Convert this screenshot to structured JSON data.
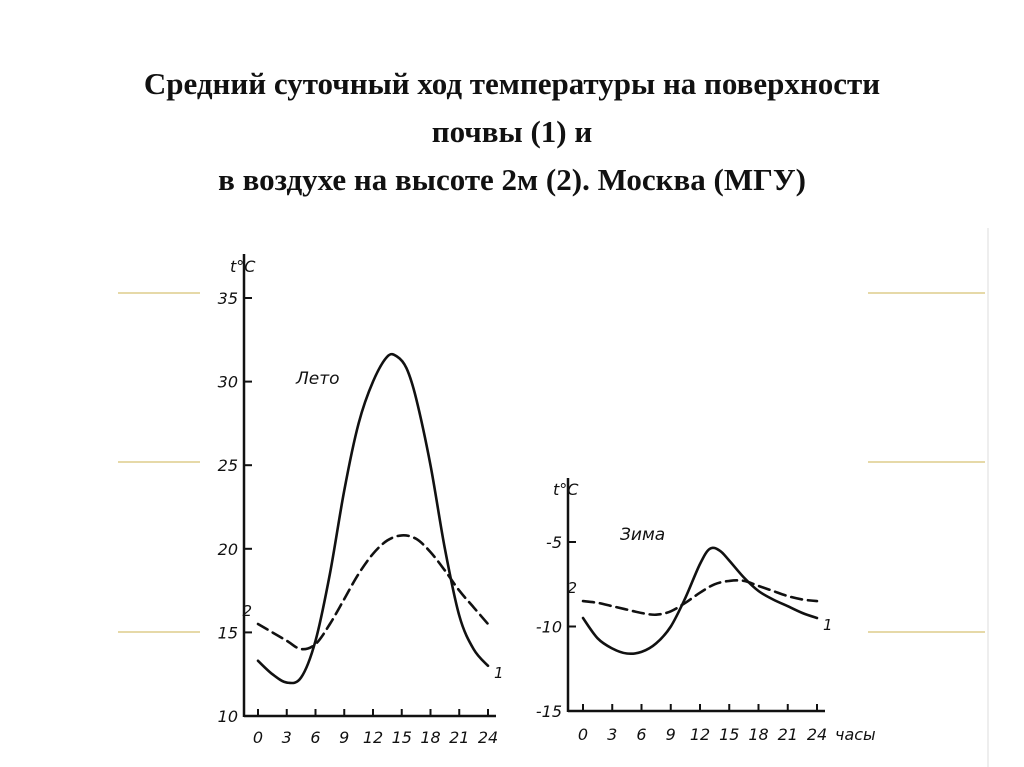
{
  "title": {
    "line1": "Средний суточный ход температуры на поверхности",
    "line2": "почвы (1)  и",
    "line3": "в воздухе на высоте 2м (2).  Москва (МГУ)"
  },
  "chart_data": [
    {
      "type": "line",
      "panel_label": "Лето",
      "ylabel": "t°C",
      "xlabel": "",
      "x_ticks": [
        "0",
        "3",
        "6",
        "9",
        "12",
        "15",
        "18",
        "21",
        "24"
      ],
      "y_ticks": [
        "10",
        "15",
        "20",
        "25",
        "30",
        "35"
      ],
      "xlim": [
        0,
        24
      ],
      "ylim": [
        10,
        35
      ],
      "grid": false,
      "series": [
        {
          "name": "1",
          "style": "solid",
          "x": [
            0,
            1.5,
            3,
            4.5,
            6,
            7.5,
            9,
            10.5,
            12,
            13.5,
            14.5,
            15.5,
            16.5,
            18,
            19.5,
            21,
            22.5,
            24
          ],
          "values": [
            13.3,
            12.5,
            12.0,
            12.3,
            14.5,
            18.5,
            23.5,
            27.5,
            30.0,
            31.5,
            31.5,
            30.8,
            29.0,
            25.0,
            20.0,
            16.0,
            14.0,
            13.0
          ]
        },
        {
          "name": "2",
          "style": "dashed",
          "x": [
            0,
            1.5,
            3,
            4.5,
            6,
            7.5,
            9,
            10.5,
            12,
            13.5,
            15,
            16.5,
            18,
            19.5,
            21,
            22.5,
            24
          ],
          "values": [
            15.5,
            15.0,
            14.5,
            14.0,
            14.3,
            15.5,
            17.0,
            18.5,
            19.7,
            20.5,
            20.8,
            20.6,
            19.8,
            18.7,
            17.5,
            16.5,
            15.5
          ]
        }
      ]
    },
    {
      "type": "line",
      "panel_label": "Зима",
      "ylabel": "t°C",
      "xlabel": "часы",
      "x_ticks": [
        "0",
        "3",
        "6",
        "9",
        "12",
        "15",
        "18",
        "21",
        "24"
      ],
      "y_ticks": [
        "-15",
        "-10",
        "-5"
      ],
      "xlim": [
        0,
        24
      ],
      "ylim": [
        -15,
        -5
      ],
      "grid": false,
      "series": [
        {
          "name": "1",
          "style": "solid",
          "x": [
            0,
            1.5,
            3,
            4.5,
            6,
            7.5,
            9,
            10.5,
            12,
            13,
            14,
            15,
            16.5,
            18,
            19.5,
            21,
            22.5,
            24
          ],
          "values": [
            -9.5,
            -10.7,
            -11.3,
            -11.6,
            -11.5,
            -11.0,
            -10.0,
            -8.3,
            -6.3,
            -5.4,
            -5.5,
            -6.1,
            -7.1,
            -7.9,
            -8.4,
            -8.8,
            -9.2,
            -9.5
          ]
        },
        {
          "name": "2",
          "style": "dashed",
          "x": [
            0,
            1.5,
            3,
            4.5,
            6,
            7.5,
            9,
            10.5,
            12,
            13.5,
            15,
            16.5,
            18,
            19.5,
            21,
            22.5,
            24
          ],
          "values": [
            -8.5,
            -8.6,
            -8.8,
            -9.0,
            -9.2,
            -9.3,
            -9.1,
            -8.6,
            -8.0,
            -7.5,
            -7.3,
            -7.3,
            -7.6,
            -7.9,
            -8.2,
            -8.4,
            -8.5
          ]
        }
      ]
    }
  ]
}
